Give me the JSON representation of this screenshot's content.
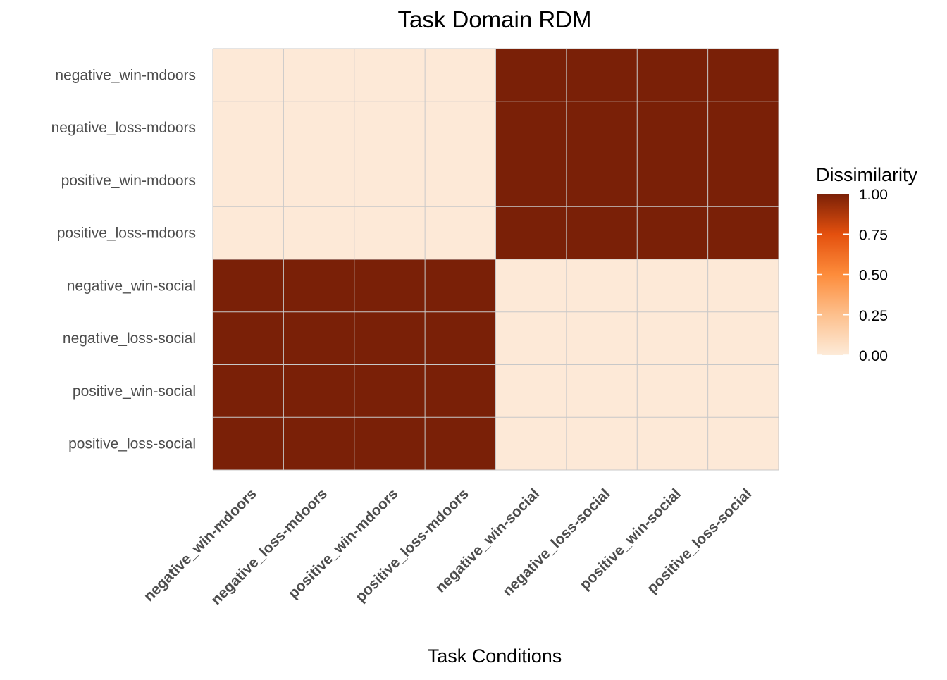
{
  "chart_data": {
    "type": "heatmap",
    "title": "Task Domain RDM",
    "xlabel": "Task Conditions",
    "ylabel": "",
    "x_categories": [
      "negative_win-mdoors",
      "negative_loss-mdoors",
      "positive_win-mdoors",
      "positive_loss-mdoors",
      "negative_win-social",
      "negative_loss-social",
      "positive_win-social",
      "positive_loss-social"
    ],
    "y_categories": [
      "negative_win-mdoors",
      "negative_loss-mdoors",
      "positive_win-mdoors",
      "positive_loss-mdoors",
      "negative_win-social",
      "negative_loss-social",
      "positive_win-social",
      "positive_loss-social"
    ],
    "values": [
      [
        0,
        0,
        0,
        0,
        1,
        1,
        1,
        1
      ],
      [
        0,
        0,
        0,
        0,
        1,
        1,
        1,
        1
      ],
      [
        0,
        0,
        0,
        0,
        1,
        1,
        1,
        1
      ],
      [
        0,
        0,
        0,
        0,
        1,
        1,
        1,
        1
      ],
      [
        1,
        1,
        1,
        1,
        0,
        0,
        0,
        0
      ],
      [
        1,
        1,
        1,
        1,
        0,
        0,
        0,
        0
      ],
      [
        1,
        1,
        1,
        1,
        0,
        0,
        0,
        0
      ],
      [
        1,
        1,
        1,
        1,
        0,
        0,
        0,
        0
      ]
    ],
    "legend": {
      "title": "Dissimilarity",
      "ticks": [
        "1.00",
        "0.75",
        "0.50",
        "0.25",
        "0.00"
      ],
      "tick_values": [
        1.0,
        0.75,
        0.5,
        0.25,
        0.0
      ],
      "range": [
        0,
        1
      ],
      "placement": "right"
    },
    "colors": {
      "low": "#fde9d7",
      "mid_low": "#fdbf8a",
      "mid": "#fd8d3c",
      "mid_high": "#e85210",
      "high": "#7a2007",
      "grid": "#c8c8c8"
    },
    "grid": true
  }
}
